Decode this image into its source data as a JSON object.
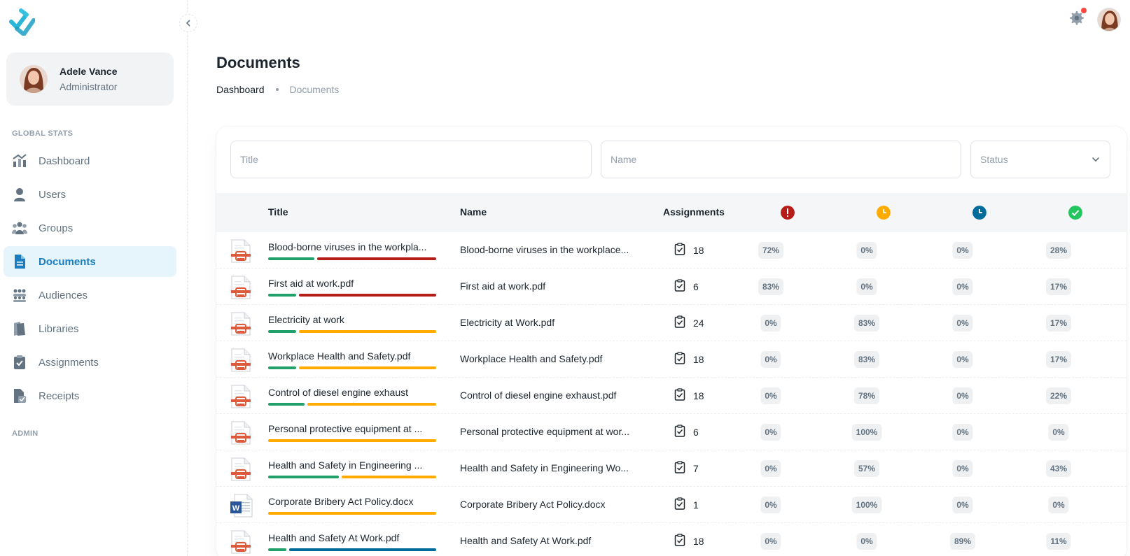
{
  "sidebar": {
    "user": {
      "name": "Adele Vance",
      "role": "Administrator"
    },
    "sections": {
      "global_stats": "GLOBAL STATS",
      "admin": "ADMIN"
    },
    "items": [
      {
        "label": "Dashboard",
        "icon": "chart-icon",
        "active": false
      },
      {
        "label": "Users",
        "icon": "user-icon",
        "active": false
      },
      {
        "label": "Groups",
        "icon": "group-icon",
        "active": false
      },
      {
        "label": "Documents",
        "icon": "document-icon",
        "active": true
      },
      {
        "label": "Audiences",
        "icon": "audience-icon",
        "active": false
      },
      {
        "label": "Libraries",
        "icon": "library-icon",
        "active": false
      },
      {
        "label": "Assignments",
        "icon": "clipboard-icon",
        "active": false
      },
      {
        "label": "Receipts",
        "icon": "receipt-icon",
        "active": false
      }
    ]
  },
  "page": {
    "title": "Documents",
    "breadcrumb": [
      "Dashboard",
      "Documents"
    ]
  },
  "filters": {
    "title_placeholder": "Title",
    "name_placeholder": "Name",
    "status_placeholder": "Status"
  },
  "table": {
    "headers": {
      "title": "Title",
      "name": "Name",
      "assignments": "Assignments"
    },
    "status_icons": [
      {
        "name": "overdue-icon",
        "color": "#b71d18"
      },
      {
        "name": "pending-icon",
        "color": "#ffab00"
      },
      {
        "name": "in-progress-icon",
        "color": "#006c9c"
      },
      {
        "name": "completed-icon",
        "color": "#22c55e"
      }
    ],
    "rows": [
      {
        "type": "pdf",
        "title": "Blood-borne viruses in the workpla...",
        "name": "Blood-borne viruses in the workplace...",
        "assignments": "18",
        "p1": "72%",
        "p2": "0%",
        "p3": "0%",
        "p4": "28%",
        "segments": [
          [
            "#22a06b",
            28
          ],
          [
            "#b71d18",
            72
          ]
        ]
      },
      {
        "type": "pdf",
        "title": "First aid at work.pdf",
        "name": "First aid at work.pdf",
        "assignments": "6",
        "p1": "83%",
        "p2": "0%",
        "p3": "0%",
        "p4": "17%",
        "segments": [
          [
            "#22a06b",
            17
          ],
          [
            "#b71d18",
            83
          ]
        ]
      },
      {
        "type": "pdf",
        "title": "Electricity at work",
        "name": "Electricity at Work.pdf",
        "assignments": "24",
        "p1": "0%",
        "p2": "83%",
        "p3": "0%",
        "p4": "17%",
        "segments": [
          [
            "#22a06b",
            17
          ],
          [
            "#ffab00",
            83
          ]
        ]
      },
      {
        "type": "pdf",
        "title": "Workplace Health and Safety.pdf",
        "name": "Workplace Health and Safety.pdf",
        "assignments": "18",
        "p1": "0%",
        "p2": "83%",
        "p3": "0%",
        "p4": "17%",
        "segments": [
          [
            "#22a06b",
            17
          ],
          [
            "#ffab00",
            83
          ]
        ]
      },
      {
        "type": "pdf",
        "title": "Control of diesel engine exhaust",
        "name": "Control of diesel engine exhaust.pdf",
        "assignments": "18",
        "p1": "0%",
        "p2": "78%",
        "p3": "0%",
        "p4": "22%",
        "segments": [
          [
            "#22a06b",
            22
          ],
          [
            "#ffab00",
            78
          ]
        ]
      },
      {
        "type": "pdf",
        "title": "Personal protective equipment at ...",
        "name": "Personal protective equipment at wor...",
        "assignments": "6",
        "p1": "0%",
        "p2": "100%",
        "p3": "0%",
        "p4": "0%",
        "segments": [
          [
            "#ffab00",
            100
          ]
        ]
      },
      {
        "type": "pdf",
        "title": "Health and Safety in Engineering ...",
        "name": "Health and Safety in Engineering Wo...",
        "assignments": "7",
        "p1": "0%",
        "p2": "57%",
        "p3": "0%",
        "p4": "43%",
        "segments": [
          [
            "#22a06b",
            43
          ],
          [
            "#ffab00",
            57
          ]
        ]
      },
      {
        "type": "docx",
        "title": "Corporate Bribery Act Policy.docx",
        "name": "Corporate Bribery Act Policy.docx",
        "assignments": "1",
        "p1": "0%",
        "p2": "100%",
        "p3": "0%",
        "p4": "0%",
        "segments": [
          [
            "#ffab00",
            100
          ]
        ]
      },
      {
        "type": "pdf",
        "title": "Health and Safety At Work.pdf",
        "name": "Health and Safety At Work.pdf",
        "assignments": "18",
        "p1": "0%",
        "p2": "0%",
        "p3": "89%",
        "p4": "11%",
        "segments": [
          [
            "#22a06b",
            11
          ],
          [
            "#006c9c",
            89
          ]
        ]
      }
    ]
  }
}
